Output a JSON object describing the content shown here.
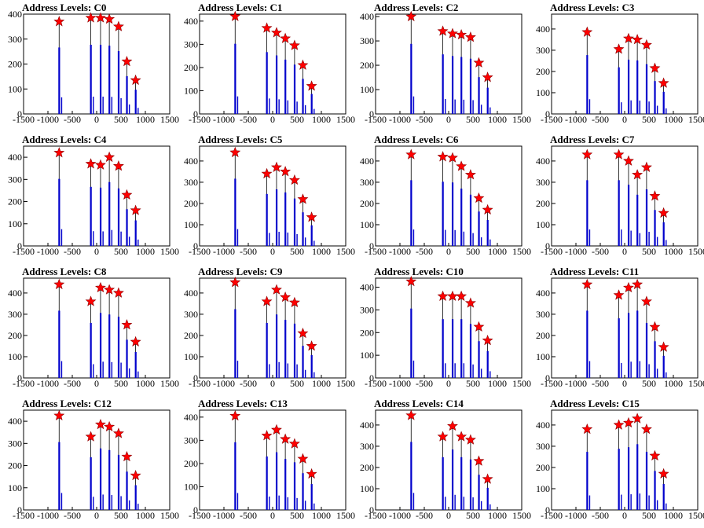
{
  "colors": {
    "histogram": "#0000cc",
    "marker": "#ff0000",
    "marker_stroke": "#8b0000",
    "axes": "#000000"
  },
  "chart_data": [
    {
      "type": "bar",
      "title": "Address Levels: C0",
      "xlim": [
        -1500,
        1500
      ],
      "ylim": [
        0,
        400
      ],
      "yticks": [
        0,
        100,
        200,
        300,
        400
      ],
      "xticks": [
        -1500,
        -1000,
        -500,
        0,
        500,
        1000,
        1500
      ],
      "xtick_labels": [
        "-1500",
        "-1000",
        "-500",
        "0",
        "500",
        "1000",
        "1500"
      ],
      "peaks": [
        {
          "x": -770,
          "y": 370
        },
        {
          "x": -120,
          "y": 385
        },
        {
          "x": 80,
          "y": 385
        },
        {
          "x": 260,
          "y": 380
        },
        {
          "x": 450,
          "y": 350
        },
        {
          "x": 620,
          "y": 210
        },
        {
          "x": 800,
          "y": 135
        }
      ]
    },
    {
      "type": "bar",
      "title": "Address Levels: C1",
      "xlim": [
        -1500,
        1500
      ],
      "ylim": [
        0,
        430
      ],
      "yticks": [
        0,
        100,
        200,
        300,
        400
      ],
      "xticks": [
        -1500,
        -1000,
        -500,
        0,
        500,
        1000,
        1500
      ],
      "xtick_labels": [
        "-1500",
        "-1000",
        "-500",
        "0",
        "500",
        "1000",
        "1500"
      ],
      "peaks": [
        {
          "x": -770,
          "y": 420
        },
        {
          "x": -120,
          "y": 370
        },
        {
          "x": 80,
          "y": 350
        },
        {
          "x": 260,
          "y": 325
        },
        {
          "x": 450,
          "y": 295
        },
        {
          "x": 620,
          "y": 210
        },
        {
          "x": 800,
          "y": 120
        }
      ]
    },
    {
      "type": "bar",
      "title": "Address Levels: C2",
      "xlim": [
        -1500,
        1500
      ],
      "ylim": [
        0,
        410
      ],
      "yticks": [
        0,
        100,
        200,
        300,
        400
      ],
      "xticks": [
        -1500,
        -1000,
        -500,
        0,
        500,
        1000,
        1500
      ],
      "xtick_labels": [
        "-1500",
        "-1000",
        "-500",
        "0",
        "500",
        "1000",
        "1500"
      ],
      "peaks": [
        {
          "x": -770,
          "y": 400
        },
        {
          "x": -120,
          "y": 340
        },
        {
          "x": 80,
          "y": 330
        },
        {
          "x": 260,
          "y": 325
        },
        {
          "x": 450,
          "y": 315
        },
        {
          "x": 620,
          "y": 210
        },
        {
          "x": 800,
          "y": 150
        }
      ]
    },
    {
      "type": "bar",
      "title": "Address Levels: C3",
      "xlim": [
        -1500,
        1500
      ],
      "ylim": [
        0,
        470
      ],
      "yticks": [
        0,
        100,
        200,
        300,
        400
      ],
      "xticks": [
        -1500,
        -1000,
        -500,
        0,
        500,
        1000,
        1500
      ],
      "xtick_labels": [
        "-1500",
        "-1000",
        "-500",
        "0",
        "500",
        "1000",
        "1500"
      ],
      "peaks": [
        {
          "x": -770,
          "y": 385
        },
        {
          "x": -120,
          "y": 305
        },
        {
          "x": 80,
          "y": 355
        },
        {
          "x": 260,
          "y": 350
        },
        {
          "x": 450,
          "y": 325
        },
        {
          "x": 620,
          "y": 215
        },
        {
          "x": 800,
          "y": 145
        }
      ]
    },
    {
      "type": "bar",
      "title": "Address Levels: C4",
      "xlim": [
        -1500,
        1500
      ],
      "ylim": [
        0,
        450
      ],
      "yticks": [
        0,
        100,
        200,
        300,
        400
      ],
      "xticks": [
        -1500,
        -1000,
        -500,
        0,
        500,
        1000,
        1500
      ],
      "xtick_labels": [
        "-1500",
        "-1000",
        "-500",
        "0",
        "500",
        "1000",
        "1500"
      ],
      "peaks": [
        {
          "x": -770,
          "y": 420
        },
        {
          "x": -120,
          "y": 370
        },
        {
          "x": 80,
          "y": 365
        },
        {
          "x": 260,
          "y": 400
        },
        {
          "x": 450,
          "y": 360
        },
        {
          "x": 620,
          "y": 230
        },
        {
          "x": 800,
          "y": 160
        }
      ]
    },
    {
      "type": "bar",
      "title": "Address Levels: C5",
      "xlim": [
        -1500,
        1500
      ],
      "ylim": [
        0,
        470
      ],
      "yticks": [
        0,
        100,
        200,
        300,
        400
      ],
      "xticks": [
        -1500,
        -1000,
        -500,
        0,
        500,
        1000,
        1500
      ],
      "xtick_labels": [
        "-1500",
        "-1000",
        "-500",
        "0",
        "500",
        "1000",
        "1500"
      ],
      "peaks": [
        {
          "x": -770,
          "y": 440
        },
        {
          "x": -120,
          "y": 340
        },
        {
          "x": 80,
          "y": 370
        },
        {
          "x": 260,
          "y": 350
        },
        {
          "x": 450,
          "y": 310
        },
        {
          "x": 620,
          "y": 220
        },
        {
          "x": 800,
          "y": 135
        }
      ]
    },
    {
      "type": "bar",
      "title": "Address Levels: C6",
      "xlim": [
        -1500,
        1500
      ],
      "ylim": [
        0,
        470
      ],
      "yticks": [
        0,
        100,
        200,
        300,
        400
      ],
      "xticks": [
        -1500,
        -1000,
        -500,
        0,
        500,
        1000,
        1500
      ],
      "xtick_labels": [
        "-1500",
        "-1000",
        "-500",
        "0",
        "500",
        "1000",
        "1500"
      ],
      "peaks": [
        {
          "x": -770,
          "y": 430
        },
        {
          "x": -120,
          "y": 420
        },
        {
          "x": 80,
          "y": 415
        },
        {
          "x": 260,
          "y": 375
        },
        {
          "x": 450,
          "y": 335
        },
        {
          "x": 620,
          "y": 225
        },
        {
          "x": 800,
          "y": 170
        }
      ]
    },
    {
      "type": "bar",
      "title": "Address Levels: C7",
      "xlim": [
        -1500,
        1500
      ],
      "ylim": [
        0,
        470
      ],
      "yticks": [
        0,
        100,
        200,
        300,
        400
      ],
      "xticks": [
        -1500,
        -1000,
        -500,
        0,
        500,
        1000,
        1500
      ],
      "xtick_labels": [
        "-1500",
        "-1000",
        "-500",
        "0",
        "500",
        "1000",
        "1500"
      ],
      "peaks": [
        {
          "x": -770,
          "y": 430
        },
        {
          "x": -120,
          "y": 430
        },
        {
          "x": 80,
          "y": 400
        },
        {
          "x": 260,
          "y": 335
        },
        {
          "x": 450,
          "y": 370
        },
        {
          "x": 620,
          "y": 235
        },
        {
          "x": 800,
          "y": 155
        }
      ]
    },
    {
      "type": "bar",
      "title": "Address Levels: C8",
      "xlim": [
        -1500,
        1500
      ],
      "ylim": [
        0,
        470
      ],
      "yticks": [
        0,
        100,
        200,
        300,
        400
      ],
      "xticks": [
        -1500,
        -1000,
        -500,
        0,
        500,
        1000,
        1500
      ],
      "xtick_labels": [
        "-1500",
        "-1000",
        "-500",
        "0",
        "500",
        "1000",
        "1500"
      ],
      "peaks": [
        {
          "x": -770,
          "y": 440
        },
        {
          "x": -120,
          "y": 360
        },
        {
          "x": 80,
          "y": 425
        },
        {
          "x": 260,
          "y": 415
        },
        {
          "x": 450,
          "y": 400
        },
        {
          "x": 620,
          "y": 250
        },
        {
          "x": 800,
          "y": 170
        }
      ]
    },
    {
      "type": "bar",
      "title": "Address Levels: C9",
      "xlim": [
        -1500,
        1500
      ],
      "ylim": [
        0,
        470
      ],
      "yticks": [
        0,
        100,
        200,
        300,
        400
      ],
      "xticks": [
        -1500,
        -1000,
        -500,
        0,
        500,
        1000,
        1500
      ],
      "xtick_labels": [
        "-1500",
        "-1000",
        "-500",
        "0",
        "500",
        "1000",
        "1500"
      ],
      "peaks": [
        {
          "x": -770,
          "y": 450
        },
        {
          "x": -120,
          "y": 360
        },
        {
          "x": 80,
          "y": 415
        },
        {
          "x": 260,
          "y": 380
        },
        {
          "x": 450,
          "y": 355
        },
        {
          "x": 620,
          "y": 210
        },
        {
          "x": 800,
          "y": 150
        }
      ]
    },
    {
      "type": "bar",
      "title": "Address Levels: C10",
      "xlim": [
        -1500,
        1500
      ],
      "ylim": [
        0,
        440
      ],
      "yticks": [
        0,
        100,
        200,
        300,
        400
      ],
      "xticks": [
        -1500,
        -1000,
        -500,
        0,
        500,
        1000,
        1500
      ],
      "xtick_labels": [
        "-1500",
        "-1000",
        "-500",
        "0",
        "500",
        "1000",
        "1500"
      ],
      "peaks": [
        {
          "x": -770,
          "y": 425
        },
        {
          "x": -120,
          "y": 360
        },
        {
          "x": 80,
          "y": 360
        },
        {
          "x": 260,
          "y": 360
        },
        {
          "x": 450,
          "y": 330
        },
        {
          "x": 620,
          "y": 225
        },
        {
          "x": 800,
          "y": 165
        }
      ]
    },
    {
      "type": "bar",
      "title": "Address Levels: C11",
      "xlim": [
        -1500,
        1500
      ],
      "ylim": [
        0,
        470
      ],
      "yticks": [
        0,
        100,
        200,
        300,
        400
      ],
      "xticks": [
        -1500,
        -1000,
        -500,
        0,
        500,
        1000,
        1500
      ],
      "xtick_labels": [
        "-1500",
        "-1000",
        "-500",
        "0",
        "500",
        "1000",
        "1500"
      ],
      "peaks": [
        {
          "x": -770,
          "y": 440
        },
        {
          "x": -120,
          "y": 390
        },
        {
          "x": 80,
          "y": 425
        },
        {
          "x": 260,
          "y": 440
        },
        {
          "x": 450,
          "y": 360
        },
        {
          "x": 620,
          "y": 240
        },
        {
          "x": 800,
          "y": 145
        }
      ]
    },
    {
      "type": "bar",
      "title": "Address Levels: C12",
      "xlim": [
        -1500,
        1500
      ],
      "ylim": [
        0,
        450
      ],
      "yticks": [
        0,
        100,
        200,
        300,
        400
      ],
      "xticks": [
        -1500,
        -1000,
        -500,
        0,
        500,
        1000,
        1500
      ],
      "xtick_labels": [
        "-1500",
        "-1000",
        "-500",
        "0",
        "500",
        "1000",
        "1500"
      ],
      "peaks": [
        {
          "x": -770,
          "y": 425
        },
        {
          "x": -120,
          "y": 330
        },
        {
          "x": 80,
          "y": 385
        },
        {
          "x": 260,
          "y": 375
        },
        {
          "x": 450,
          "y": 345
        },
        {
          "x": 620,
          "y": 240
        },
        {
          "x": 800,
          "y": 155
        }
      ]
    },
    {
      "type": "bar",
      "title": "Address Levels: C13",
      "xlim": [
        -1500,
        1500
      ],
      "ylim": [
        0,
        430
      ],
      "yticks": [
        0,
        100,
        200,
        300,
        400
      ],
      "xticks": [
        -1500,
        -1000,
        -500,
        0,
        500,
        1000,
        1500
      ],
      "xtick_labels": [
        "-1500",
        "-1000",
        "-500",
        "0",
        "500",
        "1000",
        "1500"
      ],
      "peaks": [
        {
          "x": -770,
          "y": 405
        },
        {
          "x": -120,
          "y": 320
        },
        {
          "x": 80,
          "y": 345
        },
        {
          "x": 260,
          "y": 305
        },
        {
          "x": 450,
          "y": 285
        },
        {
          "x": 620,
          "y": 220
        },
        {
          "x": 800,
          "y": 155
        }
      ]
    },
    {
      "type": "bar",
      "title": "Address Levels: C14",
      "xlim": [
        -1500,
        1500
      ],
      "ylim": [
        0,
        470
      ],
      "yticks": [
        0,
        100,
        200,
        300,
        400
      ],
      "xticks": [
        -1500,
        -1000,
        -500,
        0,
        500,
        1000,
        1500
      ],
      "xtick_labels": [
        "-1500",
        "-1000",
        "-500",
        "0",
        "500",
        "1000",
        "1500"
      ],
      "peaks": [
        {
          "x": -770,
          "y": 445
        },
        {
          "x": -120,
          "y": 345
        },
        {
          "x": 80,
          "y": 395
        },
        {
          "x": 260,
          "y": 345
        },
        {
          "x": 450,
          "y": 330
        },
        {
          "x": 620,
          "y": 230
        },
        {
          "x": 800,
          "y": 145
        }
      ]
    },
    {
      "type": "bar",
      "title": "Address Levels: C15",
      "xlim": [
        -1500,
        1500
      ],
      "ylim": [
        0,
        470
      ],
      "yticks": [
        0,
        100,
        200,
        300,
        400
      ],
      "xticks": [
        -1500,
        -1000,
        -500,
        0,
        500,
        1000,
        1500
      ],
      "xtick_labels": [
        "-1500",
        "-1000",
        "-500",
        "0",
        "500",
        "1000",
        "1500"
      ],
      "peaks": [
        {
          "x": -770,
          "y": 380
        },
        {
          "x": -120,
          "y": 400
        },
        {
          "x": 80,
          "y": 410
        },
        {
          "x": 260,
          "y": 430
        },
        {
          "x": 450,
          "y": 380
        },
        {
          "x": 620,
          "y": 255
        },
        {
          "x": 800,
          "y": 170
        }
      ]
    }
  ]
}
